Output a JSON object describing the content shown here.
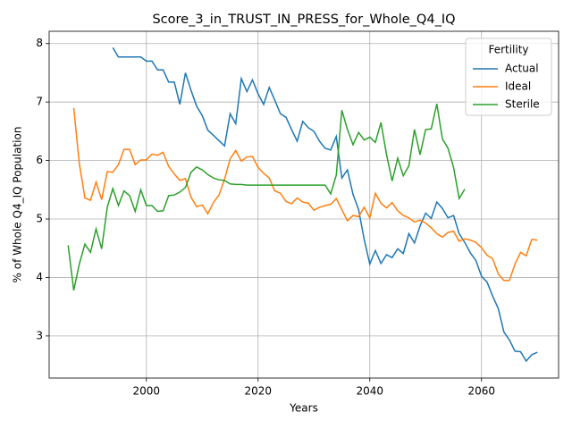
{
  "chart_data": {
    "type": "line",
    "title": "Score_3_in_TRUST_IN_PRESS_for_Whole_Q4_IQ",
    "x_label": "Years",
    "y_label": "% of Whole Q4_IQ Population",
    "legend_title": "Fertility",
    "legend_position": "upper right",
    "grid": true,
    "xlim": [
      1982.6,
      2073.8
    ],
    "xticks": [
      2000,
      2020,
      2040,
      2060
    ],
    "ylim": [
      2.28,
      8.21
    ],
    "yticks": [
      3,
      4,
      5,
      6,
      7,
      8
    ],
    "series": [
      {
        "name": "Actual",
        "color": "#1f77b4",
        "x": [
          1994,
          1995,
          1996,
          1997,
          1998,
          1999,
          2000,
          2001,
          2002,
          2003,
          2004,
          2005,
          2006,
          2007,
          2008,
          2009,
          2010,
          2011,
          2012,
          2013,
          2014,
          2015,
          2016,
          2017,
          2018,
          2019,
          2020,
          2021,
          2022,
          2023,
          2024,
          2025,
          2026,
          2027,
          2028,
          2029,
          2030,
          2031,
          2032,
          2033,
          2034,
          2035,
          2036,
          2037,
          2038,
          2039,
          2040,
          2041,
          2042,
          2043,
          2044,
          2045,
          2046,
          2047,
          2048,
          2049,
          2050,
          2051,
          2052,
          2053,
          2054,
          2055,
          2056,
          2057,
          2058,
          2059,
          2060,
          2061,
          2062,
          2063,
          2064,
          2065,
          2066,
          2067,
          2068,
          2069,
          2070
        ],
        "values": [
          7.93,
          7.77,
          7.77,
          7.77,
          7.77,
          7.77,
          7.7,
          7.7,
          7.55,
          7.55,
          7.34,
          7.34,
          6.96,
          7.5,
          7.2,
          6.93,
          6.77,
          6.52,
          6.43,
          6.34,
          6.25,
          6.8,
          6.63,
          7.4,
          7.18,
          7.38,
          7.14,
          6.96,
          7.25,
          7.03,
          6.8,
          6.74,
          6.53,
          6.33,
          6.67,
          6.56,
          6.5,
          6.33,
          6.21,
          6.18,
          6.41,
          5.7,
          5.84,
          5.42,
          5.16,
          4.65,
          4.23,
          4.46,
          4.24,
          4.39,
          4.34,
          4.49,
          4.41,
          4.75,
          4.59,
          4.88,
          5.1,
          5.01,
          5.29,
          5.18,
          5.02,
          5.06,
          4.75,
          4.6,
          4.42,
          4.29,
          4.02,
          3.92,
          3.68,
          3.47,
          3.07,
          2.93,
          2.74,
          2.73,
          2.57,
          2.68,
          2.72
        ]
      },
      {
        "name": "Ideal",
        "color": "#ff7f0e",
        "x": [
          1987,
          1988,
          1989,
          1990,
          1991,
          1992,
          1993,
          1994,
          1995,
          1996,
          1997,
          1998,
          1999,
          2000,
          2001,
          2002,
          2003,
          2004,
          2005,
          2006,
          2007,
          2008,
          2009,
          2010,
          2011,
          2012,
          2013,
          2014,
          2015,
          2016,
          2017,
          2018,
          2019,
          2020,
          2021,
          2022,
          2023,
          2024,
          2025,
          2026,
          2027,
          2028,
          2029,
          2030,
          2031,
          2032,
          2033,
          2034,
          2035,
          2036,
          2037,
          2038,
          2039,
          2040,
          2041,
          2042,
          2043,
          2044,
          2045,
          2046,
          2047,
          2048,
          2049,
          2050,
          2051,
          2052,
          2053,
          2054,
          2055,
          2056,
          2057,
          2058,
          2059,
          2060,
          2061,
          2062,
          2063,
          2064,
          2065,
          2066,
          2067,
          2068,
          2069,
          2070
        ],
        "values": [
          6.9,
          5.95,
          5.36,
          5.32,
          5.63,
          5.33,
          5.81,
          5.8,
          5.93,
          6.19,
          6.19,
          5.93,
          6.01,
          6.01,
          6.11,
          6.09,
          6.14,
          5.9,
          5.77,
          5.66,
          5.69,
          5.37,
          5.21,
          5.24,
          5.09,
          5.28,
          5.41,
          5.68,
          6.03,
          6.17,
          5.99,
          6.06,
          6.07,
          5.88,
          5.78,
          5.7,
          5.48,
          5.44,
          5.3,
          5.26,
          5.36,
          5.29,
          5.27,
          5.15,
          5.2,
          5.23,
          5.25,
          5.35,
          5.16,
          4.97,
          5.06,
          5.04,
          5.2,
          5.02,
          5.44,
          5.27,
          5.19,
          5.28,
          5.14,
          5.06,
          5.02,
          4.95,
          4.98,
          4.93,
          4.85,
          4.75,
          4.69,
          4.77,
          4.79,
          4.62,
          4.66,
          4.64,
          4.6,
          4.51,
          4.38,
          4.32,
          4.06,
          3.95,
          3.95,
          4.23,
          4.43,
          4.37,
          4.65,
          4.64
        ]
      },
      {
        "name": "Sterile",
        "color": "#2ca02c",
        "x": [
          1986,
          1987,
          1988,
          1989,
          1990,
          1991,
          1992,
          1993,
          1994,
          1995,
          1996,
          1997,
          1998,
          1999,
          2000,
          2001,
          2002,
          2003,
          2004,
          2005,
          2006,
          2007,
          2008,
          2009,
          2010,
          2011,
          2012,
          2013,
          2014,
          2015,
          2016,
          2017,
          2018,
          2019,
          2020,
          2021,
          2022,
          2023,
          2024,
          2025,
          2026,
          2027,
          2028,
          2029,
          2030,
          2031,
          2032,
          2033,
          2034,
          2035,
          2036,
          2037,
          2038,
          2039,
          2040,
          2041,
          2042,
          2043,
          2044,
          2045,
          2046,
          2047,
          2048,
          2049,
          2050,
          2051,
          2052,
          2053,
          2054,
          2055,
          2056,
          2057
        ],
        "values": [
          4.55,
          3.78,
          4.23,
          4.57,
          4.43,
          4.83,
          4.49,
          5.2,
          5.52,
          5.23,
          5.48,
          5.4,
          5.13,
          5.5,
          5.23,
          5.23,
          5.13,
          5.14,
          5.4,
          5.41,
          5.46,
          5.54,
          5.8,
          5.89,
          5.84,
          5.76,
          5.7,
          5.67,
          5.66,
          5.6,
          5.59,
          5.59,
          5.58,
          5.58,
          5.58,
          5.58,
          5.58,
          5.58,
          5.58,
          5.58,
          5.58,
          5.58,
          5.58,
          5.58,
          5.58,
          5.58,
          5.58,
          5.43,
          5.75,
          6.86,
          6.53,
          6.27,
          6.48,
          6.35,
          6.4,
          6.31,
          6.65,
          6.1,
          5.65,
          6.04,
          5.74,
          5.91,
          6.53,
          6.1,
          6.53,
          6.54,
          6.97,
          6.37,
          6.21,
          5.88,
          5.35,
          5.51
        ]
      }
    ]
  }
}
